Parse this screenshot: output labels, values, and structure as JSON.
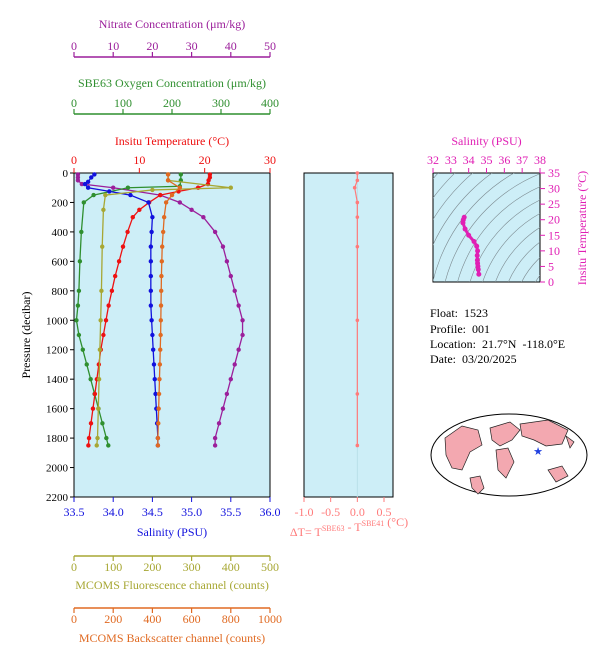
{
  "colors": {
    "panel_bg": "#cdeef7",
    "nitrate": "#9b1f9b",
    "oxygen": "#2f8f2f",
    "temperature": "#ee1111",
    "salinity": "#1111dd",
    "fluorescence": "#a7a733",
    "backscatter": "#e06a22",
    "delta_t": "#ff7a7a",
    "ts_magenta": "#e01fb4",
    "ts_contour": "#7c8a90",
    "land": "#f3a8b0",
    "float_marker": "#2040e0"
  },
  "axes": {
    "nitrate": {
      "label": "Nitrate Concentration (μm/kg)",
      "ticks": [
        "0",
        "10",
        "20",
        "30",
        "40",
        "50"
      ],
      "range": [
        0,
        50
      ]
    },
    "oxygen": {
      "label": "SBE63 Oxygen Concentration (μm/kg)",
      "ticks": [
        "0",
        "100",
        "200",
        "300",
        "400"
      ],
      "range": [
        0,
        400
      ]
    },
    "temperature": {
      "label": "Insitu Temperature (°C)",
      "ticks": [
        "0",
        "10",
        "20",
        "30"
      ],
      "range": [
        0,
        30
      ]
    },
    "salinity": {
      "label": "Salinity (PSU)",
      "ticks": [
        "33.5",
        "34.0",
        "34.5",
        "35.0",
        "35.5",
        "36.0"
      ],
      "range": [
        33.5,
        36.0
      ]
    },
    "pressure": {
      "label": "Pressure (decibar)",
      "ticks": [
        "0",
        "200",
        "400",
        "600",
        "800",
        "1000",
        "1200",
        "1400",
        "1600",
        "1800",
        "2000",
        "2200"
      ],
      "range": [
        0,
        2200
      ]
    },
    "fluorescence": {
      "label": "MCOMS Fluorescence channel (counts)",
      "ticks": [
        "0",
        "100",
        "200",
        "300",
        "400",
        "500"
      ],
      "range": [
        0,
        500
      ]
    },
    "backscatter": {
      "label": "MCOMS Backscatter channel (counts)",
      "ticks": [
        "0",
        "200",
        "400",
        "600",
        "800",
        "1000"
      ],
      "range": [
        0,
        1000
      ]
    },
    "delta_t": {
      "label_prefix": "ΔT= T",
      "sup1": "SBE63",
      "label_mid": " - T",
      "sup2": "SBE41",
      "label_suffix": " (°C)",
      "ticks": [
        "-1.0",
        "-0.5",
        "0.0",
        "0.5"
      ],
      "range": [
        -1.0,
        0.5
      ]
    },
    "ts_salinity": {
      "label": "Salinity (PSU)",
      "ticks": [
        "32",
        "33",
        "34",
        "35",
        "36",
        "37",
        "38"
      ],
      "range": [
        32,
        38
      ]
    },
    "ts_temperature": {
      "label": "Insitu Temperature (°C)",
      "ticks": [
        "0",
        "5",
        "10",
        "15",
        "20",
        "25",
        "30",
        "35"
      ],
      "range": [
        0,
        35
      ]
    }
  },
  "info": {
    "float_label": "Float:",
    "float_value": "1523",
    "profile_label": "Profile:",
    "profile_value": "001",
    "location_label": "Location:",
    "location_value": "21.7°N  -118.0°E",
    "date_label": "Date:",
    "date_value": "03/20/2025"
  },
  "chart_data": [
    {
      "type": "line",
      "title": "",
      "ylabel": "Pressure (decibar)",
      "ylim": [
        2200,
        0
      ],
      "series": [
        {
          "name": "Nitrate Concentration (μm/kg)",
          "axis": "nitrate",
          "color": "#9b1f9b",
          "points": [
            [
              1,
              10
            ],
            [
              1,
              30
            ],
            [
              1,
              50
            ],
            [
              2,
              75
            ],
            [
              10,
              100
            ],
            [
              22,
              150
            ],
            [
              27,
              200
            ],
            [
              30,
              250
            ],
            [
              33,
              300
            ],
            [
              36,
              400
            ],
            [
              38,
              500
            ],
            [
              39,
              600
            ],
            [
              40,
              700
            ],
            [
              41,
              800
            ],
            [
              42,
              900
            ],
            [
              43,
              1000
            ],
            [
              43,
              1100
            ],
            [
              42,
              1200
            ],
            [
              41,
              1300
            ],
            [
              40,
              1400
            ],
            [
              39,
              1500
            ],
            [
              38,
              1600
            ],
            [
              37,
              1700
            ],
            [
              36,
              1800
            ],
            [
              36,
              1850
            ]
          ]
        },
        {
          "name": "SBE63 Oxygen Concentration (μm/kg)",
          "axis": "oxygen",
          "color": "#2f8f2f",
          "points": [
            [
              218,
              10
            ],
            [
              218,
              50
            ],
            [
              216,
              90
            ],
            [
              110,
              100
            ],
            [
              40,
              150
            ],
            [
              20,
              200
            ],
            [
              15,
              400
            ],
            [
              12,
              600
            ],
            [
              10,
              800
            ],
            [
              8,
              900
            ],
            [
              5,
              1000
            ],
            [
              10,
              1100
            ],
            [
              18,
              1200
            ],
            [
              26,
              1300
            ],
            [
              34,
              1400
            ],
            [
              42,
              1500
            ],
            [
              50,
              1600
            ],
            [
              58,
              1700
            ],
            [
              66,
              1800
            ],
            [
              70,
              1850
            ]
          ]
        }
      ]
    },
    {
      "type": "line",
      "series": [
        {
          "name": "Insitu Temperature (°C)",
          "axis": "temperature",
          "color": "#ee1111",
          "points": [
            [
              20.8,
              10
            ],
            [
              20.8,
              30
            ],
            [
              20.6,
              50
            ],
            [
              20.5,
              75
            ],
            [
              19.0,
              100
            ],
            [
              16.0,
              125
            ],
            [
              13.2,
              150
            ],
            [
              11.5,
              200
            ],
            [
              10.0,
              250
            ],
            [
              9.0,
              300
            ],
            [
              8.2,
              400
            ],
            [
              7.5,
              500
            ],
            [
              6.9,
              600
            ],
            [
              6.3,
              700
            ],
            [
              5.8,
              800
            ],
            [
              5.3,
              900
            ],
            [
              4.9,
              1000
            ],
            [
              4.5,
              1100
            ],
            [
              4.1,
              1200
            ],
            [
              3.8,
              1300
            ],
            [
              3.5,
              1400
            ],
            [
              3.2,
              1500
            ],
            [
              2.9,
              1600
            ],
            [
              2.6,
              1700
            ],
            [
              2.3,
              1800
            ],
            [
              2.2,
              1850
            ]
          ]
        },
        {
          "name": "Salinity (PSU)",
          "axis": "salinity",
          "color": "#1111dd",
          "points": [
            [
              33.76,
              10
            ],
            [
              33.72,
              30
            ],
            [
              33.68,
              60
            ],
            [
              33.64,
              75
            ],
            [
              33.68,
              100
            ],
            [
              33.95,
              125
            ],
            [
              34.22,
              150
            ],
            [
              34.45,
              200
            ],
            [
              34.5,
              300
            ],
            [
              34.49,
              400
            ],
            [
              34.48,
              500
            ],
            [
              34.48,
              600
            ],
            [
              34.48,
              700
            ],
            [
              34.48,
              800
            ],
            [
              34.48,
              900
            ],
            [
              34.49,
              1000
            ],
            [
              34.5,
              1100
            ],
            [
              34.51,
              1200
            ],
            [
              34.52,
              1300
            ],
            [
              34.53,
              1400
            ],
            [
              34.54,
              1500
            ],
            [
              34.55,
              1600
            ],
            [
              34.56,
              1700
            ],
            [
              34.57,
              1800
            ],
            [
              34.57,
              1850
            ]
          ]
        },
        {
          "name": "MCOMS Fluorescence channel (counts)",
          "axis": "fluorescence",
          "color": "#a7a733",
          "points": [
            [
              240,
              10
            ],
            [
              240,
              50
            ],
            [
              400,
              100
            ],
            [
              200,
              115
            ],
            [
              80,
              150
            ],
            [
              75,
              250
            ],
            [
              72,
              500
            ],
            [
              70,
              800
            ],
            [
              68,
              1000
            ],
            [
              66,
              1200
            ],
            [
              64,
              1400
            ],
            [
              62,
              1600
            ],
            [
              60,
              1800
            ],
            [
              58,
              1850
            ]
          ]
        },
        {
          "name": "MCOMS Backscatter channel (counts)",
          "axis": "backscatter",
          "color": "#e06a22",
          "points": [
            [
              480,
              10
            ],
            [
              480,
              50
            ],
            [
              540,
              100
            ],
            [
              500,
              150
            ],
            [
              470,
              200
            ],
            [
              460,
              300
            ],
            [
              455,
              400
            ],
            [
              450,
              500
            ],
            [
              448,
              600
            ],
            [
              446,
              700
            ],
            [
              445,
              800
            ],
            [
              444,
              900
            ],
            [
              443,
              1000
            ],
            [
              442,
              1100
            ],
            [
              440,
              1200
            ],
            [
              438,
              1300
            ],
            [
              436,
              1400
            ],
            [
              434,
              1500
            ],
            [
              432,
              1600
            ],
            [
              430,
              1700
            ],
            [
              428,
              1800
            ],
            [
              428,
              1850
            ]
          ]
        },
        {
          "name": "ΔT",
          "axis": "delta_t",
          "color": "#ff7a7a",
          "points": [
            [
              0.0,
              0
            ],
            [
              0.0,
              50
            ],
            [
              -0.05,
              100
            ],
            [
              0.0,
              200
            ],
            [
              0.0,
              300
            ],
            [
              0.0,
              500
            ],
            [
              0.0,
              1000
            ],
            [
              0.0,
              1500
            ],
            [
              0.0,
              1850
            ]
          ]
        }
      ]
    },
    {
      "type": "scatter",
      "title": "",
      "xlabel": "Salinity (PSU)",
      "ylabel": "Insitu Temperature (°C)",
      "xlim": [
        32,
        38
      ],
      "ylim": [
        0,
        35
      ],
      "series": [
        {
          "name": "T-S",
          "color": "#e01fb4",
          "points": [
            [
              33.75,
              20.8
            ],
            [
              33.7,
              20
            ],
            [
              33.68,
              19
            ],
            [
              33.8,
              17
            ],
            [
              34.0,
              15
            ],
            [
              34.3,
              13
            ],
            [
              34.45,
              11.5
            ],
            [
              34.5,
              10
            ],
            [
              34.48,
              8.5
            ],
            [
              34.49,
              7
            ],
            [
              34.5,
              6
            ],
            [
              34.52,
              5
            ],
            [
              34.54,
              4
            ],
            [
              34.57,
              2.5
            ]
          ]
        }
      ]
    }
  ]
}
